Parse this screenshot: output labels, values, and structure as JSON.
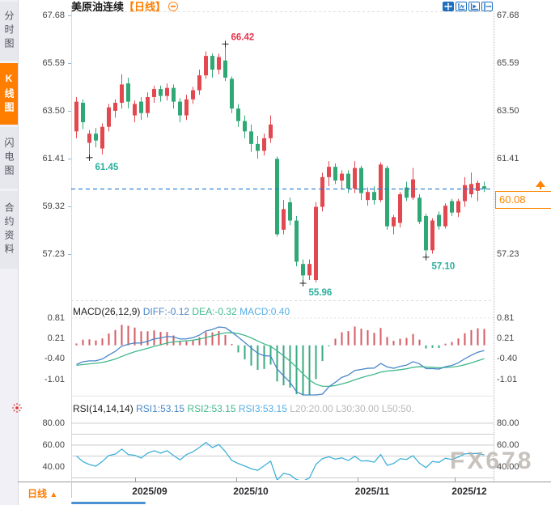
{
  "sidebar": {
    "tabs": [
      {
        "label": "分时图",
        "active": false
      },
      {
        "label": "K线图",
        "active": true
      },
      {
        "label": "闪电图",
        "active": false
      },
      {
        "label": "合约资料",
        "active": false
      }
    ]
  },
  "header": {
    "title": "美原油连续",
    "period_tag": "【日线】",
    "collapse_icon": "circled-minus"
  },
  "toolbar": {
    "icons": [
      "pan-icon",
      "zoom-y-axis-icon",
      "zoom-x-axis-icon",
      "shift-right-icon"
    ]
  },
  "bottom_bar": {
    "period_label": "日线",
    "arrow": "▲"
  },
  "watermark": {
    "text": "FX678"
  },
  "colors": {
    "up": "#e2484f",
    "down": "#2fa875",
    "hist_up": "#d65a62",
    "hist_down": "#3aa981",
    "diff_line": "#4a87c7",
    "dea_line": "#41b98b",
    "rsi_line": "#3fb1d8",
    "dashed_price_line": "#1f7ad4",
    "accent_orange": "#ff7e00",
    "annotation_high": "#e8354a",
    "annotation_low": "#2aae9c",
    "toolbar_blue": "#1f6fbe",
    "sun_red": "#e03131"
  },
  "chart_data": {
    "type": "candlestick",
    "title": "美原油连续 日线",
    "price_axis_ticks": [
      {
        "label": "67.68",
        "value": 67.68
      },
      {
        "label": "65.59",
        "value": 65.59
      },
      {
        "label": "63.50",
        "value": 63.5
      },
      {
        "label": "61.41",
        "value": 61.41
      },
      {
        "label": "59.32",
        "value": 59.32
      },
      {
        "label": "57.23",
        "value": 57.23
      }
    ],
    "ylim": [
      55.18,
      67.85
    ],
    "x_axis_labels": [
      "2025/09",
      "2025/10",
      "2025/11",
      "2025/12"
    ],
    "x_axis_label_indices": [
      11.375,
      27,
      45.75,
      60.75
    ],
    "current_price": "60.08",
    "current_price_value": 60.08,
    "annotations": [
      {
        "text": "66.42",
        "index": 23,
        "price": 66.42,
        "type": "high"
      },
      {
        "text": "61.45",
        "index": 2,
        "price": 61.45,
        "type": "low"
      },
      {
        "text": "55.96",
        "index": 35,
        "price": 55.96,
        "type": "low"
      },
      {
        "text": "57.10",
        "index": 54,
        "price": 57.1,
        "type": "low"
      }
    ],
    "candles": [
      [
        62.6,
        64.1,
        62.3,
        63.9
      ],
      [
        63.85,
        64.0,
        62.7,
        63.0
      ],
      [
        62.1,
        62.65,
        61.45,
        62.5
      ],
      [
        62.5,
        62.75,
        61.9,
        62.2
      ],
      [
        61.85,
        62.95,
        61.6,
        62.8
      ],
      [
        62.8,
        63.8,
        62.6,
        63.65
      ],
      [
        63.5,
        64.0,
        63.2,
        63.85
      ],
      [
        63.85,
        65.1,
        63.6,
        64.65
      ],
      [
        64.7,
        64.95,
        63.6,
        63.9
      ],
      [
        63.3,
        63.95,
        63.0,
        63.8
      ],
      [
        63.9,
        64.1,
        63.1,
        63.4
      ],
      [
        63.4,
        64.3,
        63.2,
        64.1
      ],
      [
        64.1,
        64.6,
        63.85,
        64.45
      ],
      [
        64.45,
        64.6,
        63.9,
        64.15
      ],
      [
        64.15,
        64.7,
        63.95,
        64.5
      ],
      [
        64.5,
        64.65,
        63.6,
        63.9
      ],
      [
        63.9,
        64.05,
        63.0,
        63.3
      ],
      [
        63.3,
        64.2,
        63.1,
        64.0
      ],
      [
        64.0,
        64.55,
        63.8,
        64.4
      ],
      [
        64.4,
        65.3,
        64.2,
        65.05
      ],
      [
        65.05,
        66.1,
        64.9,
        65.9
      ],
      [
        65.9,
        66.0,
        64.95,
        65.3
      ],
      [
        65.3,
        66.0,
        65.1,
        65.85
      ],
      [
        65.7,
        66.42,
        64.8,
        64.95
      ],
      [
        64.9,
        65.0,
        63.4,
        63.6
      ],
      [
        63.6,
        63.8,
        62.8,
        63.05
      ],
      [
        63.05,
        63.3,
        62.3,
        62.6
      ],
      [
        62.6,
        62.9,
        61.7,
        62.05
      ],
      [
        62.05,
        62.4,
        61.4,
        61.75
      ],
      [
        61.75,
        62.5,
        61.55,
        62.3
      ],
      [
        62.3,
        63.3,
        62.1,
        62.9
      ],
      [
        61.4,
        61.5,
        58.0,
        58.1
      ],
      [
        58.3,
        59.6,
        58.1,
        59.2
      ],
      [
        59.5,
        59.7,
        58.5,
        58.7
      ],
      [
        58.7,
        58.9,
        56.7,
        56.9
      ],
      [
        56.8,
        57.0,
        55.96,
        56.3
      ],
      [
        56.3,
        57.0,
        56.1,
        56.8
      ],
      [
        56.1,
        59.5,
        56.0,
        59.3
      ],
      [
        59.3,
        60.8,
        59.1,
        60.6
      ],
      [
        60.6,
        61.3,
        60.2,
        61.05
      ],
      [
        61.05,
        61.2,
        60.3,
        60.45
      ],
      [
        60.45,
        60.9,
        60.1,
        60.75
      ],
      [
        60.75,
        60.9,
        59.9,
        60.1
      ],
      [
        60.1,
        61.3,
        59.9,
        61.0
      ],
      [
        61.0,
        61.1,
        59.6,
        59.9
      ],
      [
        59.6,
        60.15,
        59.35,
        59.95
      ],
      [
        59.95,
        60.2,
        59.4,
        59.6
      ],
      [
        59.6,
        61.25,
        59.5,
        61.15
      ],
      [
        61.0,
        61.1,
        58.3,
        58.45
      ],
      [
        58.45,
        58.95,
        58.1,
        58.85
      ],
      [
        58.6,
        59.95,
        58.4,
        59.85
      ],
      [
        60.15,
        60.4,
        59.55,
        59.7
      ],
      [
        59.7,
        61.0,
        59.6,
        60.5
      ],
      [
        59.7,
        59.85,
        58.55,
        58.65
      ],
      [
        58.9,
        59.0,
        57.1,
        57.4
      ],
      [
        57.4,
        58.8,
        57.25,
        58.7
      ],
      [
        58.95,
        59.1,
        58.3,
        58.45
      ],
      [
        58.45,
        59.45,
        58.35,
        59.35
      ],
      [
        59.55,
        59.65,
        58.9,
        59.05
      ],
      [
        59.05,
        59.65,
        58.85,
        59.55
      ],
      [
        59.55,
        60.6,
        59.3,
        60.25
      ],
      [
        59.85,
        60.8,
        59.7,
        60.3
      ],
      [
        60.0,
        60.45,
        59.55,
        60.35
      ],
      [
        60.2,
        60.4,
        59.95,
        60.08
      ]
    ],
    "macd": {
      "name": "MACD(26,12,9)",
      "params": [
        26,
        12,
        9
      ],
      "diff_label": "DIFF:-0.12",
      "dea_label": "DEA:-0.32",
      "macd_label": "MACD:0.40",
      "diff_value": -0.12,
      "dea_value": -0.32,
      "macd_value": 0.4,
      "axis_ticks": [
        {
          "label": "0.81",
          "value": 0.81
        },
        {
          "label": "0.21",
          "value": 0.21
        },
        {
          "label": "-0.40",
          "value": -0.4
        },
        {
          "label": "-1.01",
          "value": -1.01
        }
      ],
      "ylim": [
        -1.52,
        1.0
      ]
    },
    "rsi": {
      "name": "RSI(14,14,14)",
      "params": [
        14,
        14,
        14
      ],
      "rsi1_label": "RSI1:53.15",
      "rsi2_label": "RSI2:53.15",
      "rsi3_label": "RSI3:53.15",
      "l20_label": "L20:20.00",
      "l30_label": "L30:30.00",
      "l50_label": "L50:50.",
      "rsi1_value": 53.15,
      "rsi2_value": 53.15,
      "rsi3_value": 53.15,
      "axis_ticks": [
        {
          "label": "80.00",
          "value": 80
        },
        {
          "label": "60.00",
          "value": 60
        },
        {
          "label": "40.00",
          "value": 40
        }
      ],
      "gridlines": [
        80,
        70,
        60,
        50,
        30
      ],
      "ylim": [
        28.1,
        93.3
      ]
    }
  }
}
